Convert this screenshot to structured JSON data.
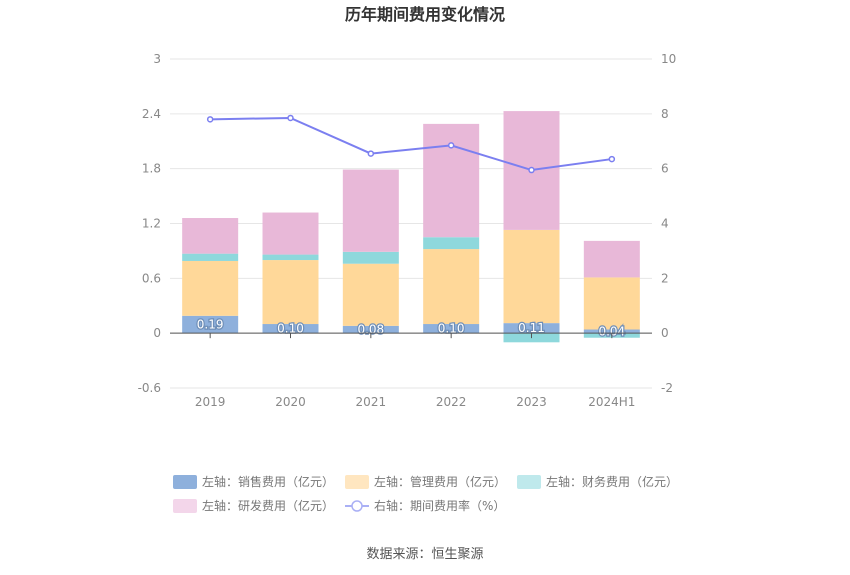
{
  "chart_data": {
    "type": "bar",
    "title": "历年期间费用变化情况",
    "categories": [
      "2019",
      "2020",
      "2021",
      "2022",
      "2023",
      "2024H1"
    ],
    "stacked": true,
    "ylim_left": [
      -0.6,
      3
    ],
    "yticks_left": [
      "-0.6",
      "0",
      "0.6",
      "1.2",
      "1.8",
      "2.4",
      "3"
    ],
    "ylim_right": [
      -2,
      10
    ],
    "yticks_right": [
      "-2",
      "0",
      "2",
      "4",
      "6",
      "8",
      "10"
    ],
    "grid": true,
    "legend_position": "bottom",
    "series": [
      {
        "name": "左轴：销售费用（亿元）",
        "axis": "left",
        "kind": "bar",
        "color": "#8eb0dc",
        "values": [
          0.19,
          0.1,
          0.08,
          0.1,
          0.11,
          0.04
        ],
        "labels": [
          "0.19",
          "0.10",
          "0.08",
          "0.10",
          "0.11",
          "0.04"
        ]
      },
      {
        "name": "左轴：管理费用（亿元）",
        "axis": "left",
        "kind": "bar",
        "color": "#ffd899",
        "values": [
          0.6,
          0.7,
          0.68,
          0.82,
          1.02,
          0.57
        ]
      },
      {
        "name": "左轴：财务费用（亿元）",
        "axis": "left",
        "kind": "bar",
        "color": "#8ed8dc",
        "values": [
          0.08,
          0.06,
          0.13,
          0.13,
          -0.1,
          -0.05
        ]
      },
      {
        "name": "左轴：研发费用（亿元）",
        "axis": "left",
        "kind": "bar",
        "color": "#e8b8d8",
        "values": [
          0.39,
          0.46,
          0.9,
          1.24,
          1.3,
          0.4
        ]
      },
      {
        "name": "右轴：期间费用率（%）",
        "axis": "right",
        "kind": "line",
        "color": "#7b7ff0",
        "values": [
          7.8,
          7.85,
          6.55,
          6.85,
          5.95,
          6.35
        ]
      }
    ],
    "source": "数据来源：恒生聚源"
  }
}
